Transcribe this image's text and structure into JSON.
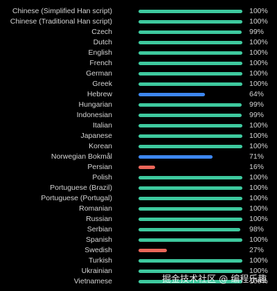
{
  "colors": {
    "high": "#3ec99e",
    "medium": "#3d87f0",
    "low": "#ea6659"
  },
  "languages": [
    {
      "name": "Chinese (Simplified Han script)",
      "percent": 100,
      "label": "100%",
      "level": "high"
    },
    {
      "name": "Chinese (Traditional Han script)",
      "percent": 100,
      "label": "100%",
      "level": "high"
    },
    {
      "name": "Czech",
      "percent": 99,
      "label": "99%",
      "level": "high"
    },
    {
      "name": "Dutch",
      "percent": 100,
      "label": "100%",
      "level": "high"
    },
    {
      "name": "English",
      "percent": 100,
      "label": "100%",
      "level": "high"
    },
    {
      "name": "French",
      "percent": 100,
      "label": "100%",
      "level": "high"
    },
    {
      "name": "German",
      "percent": 100,
      "label": "100%",
      "level": "high"
    },
    {
      "name": "Greek",
      "percent": 100,
      "label": "100%",
      "level": "high"
    },
    {
      "name": "Hebrew",
      "percent": 64,
      "label": "64%",
      "level": "medium"
    },
    {
      "name": "Hungarian",
      "percent": 99,
      "label": "99%",
      "level": "high"
    },
    {
      "name": "Indonesian",
      "percent": 99,
      "label": "99%",
      "level": "high"
    },
    {
      "name": "Italian",
      "percent": 100,
      "label": "100%",
      "level": "high"
    },
    {
      "name": "Japanese",
      "percent": 100,
      "label": "100%",
      "level": "high"
    },
    {
      "name": "Korean",
      "percent": 100,
      "label": "100%",
      "level": "high"
    },
    {
      "name": "Norwegian Bokmål",
      "percent": 71,
      "label": "71%",
      "level": "medium"
    },
    {
      "name": "Persian",
      "percent": 16,
      "label": "16%",
      "level": "low"
    },
    {
      "name": "Polish",
      "percent": 100,
      "label": "100%",
      "level": "high"
    },
    {
      "name": "Portuguese (Brazil)",
      "percent": 100,
      "label": "100%",
      "level": "high"
    },
    {
      "name": "Portuguese (Portugal)",
      "percent": 100,
      "label": "100%",
      "level": "high"
    },
    {
      "name": "Romanian",
      "percent": 100,
      "label": "100%",
      "level": "high"
    },
    {
      "name": "Russian",
      "percent": 100,
      "label": "100%",
      "level": "high"
    },
    {
      "name": "Serbian",
      "percent": 98,
      "label": "98%",
      "level": "high"
    },
    {
      "name": "Spanish",
      "percent": 100,
      "label": "100%",
      "level": "high"
    },
    {
      "name": "Swedish",
      "percent": 27,
      "label": "27%",
      "level": "low"
    },
    {
      "name": "Turkish",
      "percent": 100,
      "label": "100%",
      "level": "high"
    },
    {
      "name": "Ukrainian",
      "percent": 100,
      "label": "100%",
      "level": "high"
    },
    {
      "name": "Vietnamese",
      "percent": 100,
      "label": "100%",
      "level": "high"
    }
  ],
  "watermark": "掘金技术社区 @ 编程乐趣"
}
